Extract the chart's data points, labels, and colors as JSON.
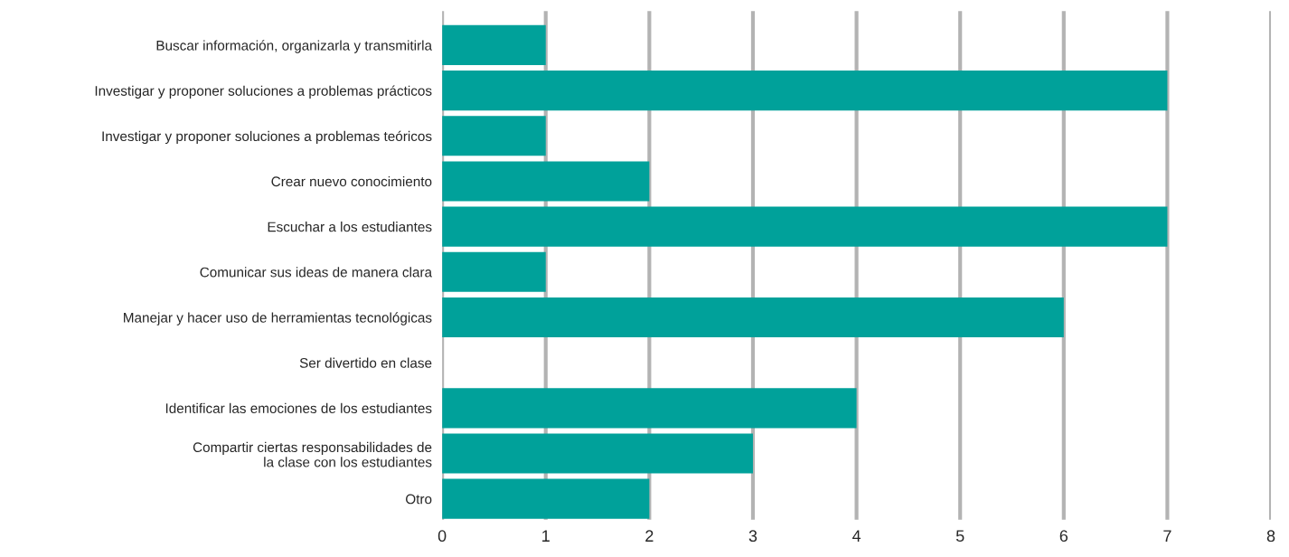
{
  "chart_data": {
    "type": "bar",
    "orientation": "horizontal",
    "categories": [
      "Buscar información, organizarla y transmitirla",
      "Investigar y proponer soluciones a problemas prácticos",
      "Investigar y proponer soluciones a problemas teóricos",
      "Crear nuevo conocimiento",
      "Escuchar a los estudiantes",
      "Comunicar sus ideas de manera clara",
      "Manejar y hacer uso de herramientas tecnológicas",
      "Ser divertido en clase",
      "Identificar las emociones de los estudiantes",
      "Compartir ciertas responsabilidades de\nla clase con los estudiantes",
      "Otro"
    ],
    "values": [
      1,
      7,
      1,
      2,
      7,
      1,
      6,
      0,
      4,
      3,
      2
    ],
    "color": "#00a19a",
    "xlim": [
      0,
      8
    ],
    "xticks": [
      0,
      1,
      2,
      3,
      4,
      5,
      6,
      7,
      8
    ],
    "grid": "x",
    "legend": false
  }
}
